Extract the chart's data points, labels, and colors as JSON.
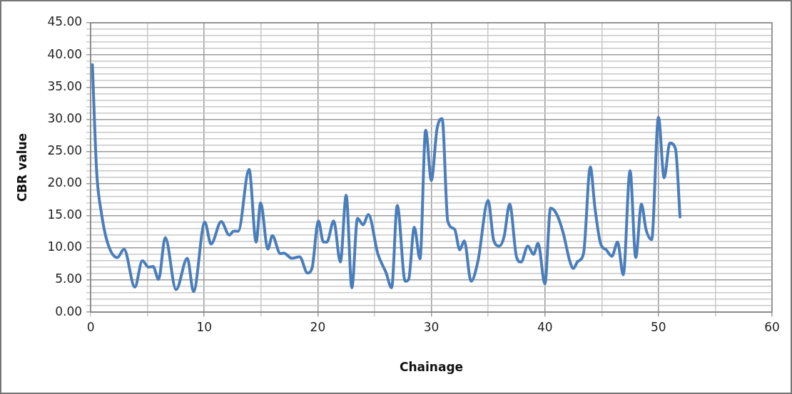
{
  "chart_data": {
    "type": "line",
    "xlabel": "Chainage",
    "ylabel": "CBR value",
    "series": [
      {
        "color": "#4a7ebb",
        "x": [
          0.15,
          0.53,
          0.93,
          1.47,
          2.35,
          2.94,
          3.89,
          4.55,
          5.1,
          5.5,
          5.98,
          6.57,
          7.52,
          8.51,
          9.06,
          10.05,
          10.6,
          11.5,
          12.2,
          12.6,
          13.0,
          13.95,
          14.57,
          14.97,
          15.6,
          16.0,
          16.7,
          17.0,
          17.7,
          18.4,
          19.1,
          19.5,
          20.05,
          20.5,
          20.8,
          21.4,
          21.99,
          22.5,
          23.0,
          23.5,
          24.0,
          24.45,
          25.3,
          26.0,
          26.5,
          27.0,
          27.7,
          28.0,
          28.5,
          29.0,
          29.5,
          30.0,
          30.5,
          30.95,
          31.45,
          32.05,
          32.5,
          32.9,
          33.5,
          34.1,
          35.0,
          35.5,
          36.0,
          36.4,
          36.9,
          37.5,
          37.9,
          38.5,
          39.0,
          39.4,
          40.0,
          40.5,
          41.05,
          41.6,
          42.2,
          42.5,
          42.9,
          43.4,
          44.0,
          44.4,
          44.9,
          45.4,
          45.9,
          46.4,
          46.9,
          47.5,
          48.0,
          48.5,
          48.9,
          49.4,
          50.0,
          50.5,
          51.0,
          51.5,
          51.9
        ],
        "values": [
          38.5,
          21.8,
          15.6,
          10.9,
          8.5,
          9.8,
          3.9,
          8.0,
          7.0,
          7.1,
          5.1,
          11.6,
          3.5,
          8.4,
          3.2,
          14.0,
          10.6,
          14.1,
          12.0,
          12.6,
          12.6,
          22.2,
          10.9,
          17.0,
          9.8,
          11.9,
          9.1,
          9.2,
          8.4,
          8.6,
          6.1,
          6.9,
          14.2,
          10.9,
          10.9,
          14.2,
          7.8,
          18.2,
          3.8,
          14.6,
          13.6,
          15.2,
          9.0,
          6.2,
          3.8,
          16.6,
          4.8,
          5.1,
          13.2,
          8.3,
          28.3,
          20.5,
          28.5,
          30.1,
          14.1,
          12.9,
          9.7,
          11.1,
          4.8,
          7.9,
          17.4,
          11.1,
          10.3,
          11.7,
          16.8,
          8.6,
          7.8,
          10.3,
          9.0,
          10.7,
          4.4,
          16.2,
          15.2,
          12.4,
          7.9,
          6.8,
          7.9,
          9.1,
          22.6,
          16.3,
          10.7,
          9.7,
          8.7,
          10.9,
          5.8,
          22.0,
          8.5,
          16.8,
          12.9,
          11.3,
          30.3,
          20.9,
          26.3,
          25.4,
          14.8
        ]
      }
    ],
    "xlim": [
      0,
      60
    ],
    "xticks": [
      0,
      {
        "value": 5,
        "label": null
      },
      10,
      {
        "value": 15,
        "label": null
      },
      20,
      {
        "value": 25,
        "label": null
      },
      30,
      {
        "value": 35,
        "label": null
      },
      40,
      {
        "value": 45,
        "label": null
      },
      50,
      {
        "value": 55,
        "label": null
      },
      60
    ],
    "ylim": [
      0,
      45
    ],
    "yticks": [
      {
        "value": 0,
        "label": "0.00"
      },
      {
        "value": 1,
        "label": null
      },
      {
        "value": 2,
        "label": null
      },
      {
        "value": 3,
        "label": null
      },
      {
        "value": 4,
        "label": null
      },
      {
        "value": 5,
        "label": "5.00"
      },
      {
        "value": 6,
        "label": null
      },
      {
        "value": 7,
        "label": null
      },
      {
        "value": 8,
        "label": null
      },
      {
        "value": 9,
        "label": null
      },
      {
        "value": 10,
        "label": "10.00"
      },
      {
        "value": 11,
        "label": null
      },
      {
        "value": 12,
        "label": null
      },
      {
        "value": 13,
        "label": null
      },
      {
        "value": 14,
        "label": null
      },
      {
        "value": 15,
        "label": "15.00"
      },
      {
        "value": 16,
        "label": null
      },
      {
        "value": 17,
        "label": null
      },
      {
        "value": 18,
        "label": null
      },
      {
        "value": 19,
        "label": null
      },
      {
        "value": 20,
        "label": "20.00"
      },
      {
        "value": 21,
        "label": null
      },
      {
        "value": 22,
        "label": null
      },
      {
        "value": 23,
        "label": null
      },
      {
        "value": 24,
        "label": null
      },
      {
        "value": 25,
        "label": "25.00"
      },
      {
        "value": 26,
        "label": null
      },
      {
        "value": 27,
        "label": null
      },
      {
        "value": 28,
        "label": null
      },
      {
        "value": 29,
        "label": null
      },
      {
        "value": 30,
        "label": "30.00"
      },
      {
        "value": 31,
        "label": null
      },
      {
        "value": 32,
        "label": null
      },
      {
        "value": 33,
        "label": null
      },
      {
        "value": 34,
        "label": null
      },
      {
        "value": 35,
        "label": "35.00"
      },
      {
        "value": 36,
        "label": null
      },
      {
        "value": 37,
        "label": null
      },
      {
        "value": 38,
        "label": null
      },
      {
        "value": 39,
        "label": null
      },
      {
        "value": 40,
        "label": "40.00"
      },
      {
        "value": 41,
        "label": null
      },
      {
        "value": 42,
        "label": null
      },
      {
        "value": 43,
        "label": null
      },
      {
        "value": 44,
        "label": null
      },
      {
        "value": 45,
        "label": "45.00"
      }
    ],
    "grid": true,
    "legend": false,
    "marker": "none",
    "line_style": "solid"
  }
}
